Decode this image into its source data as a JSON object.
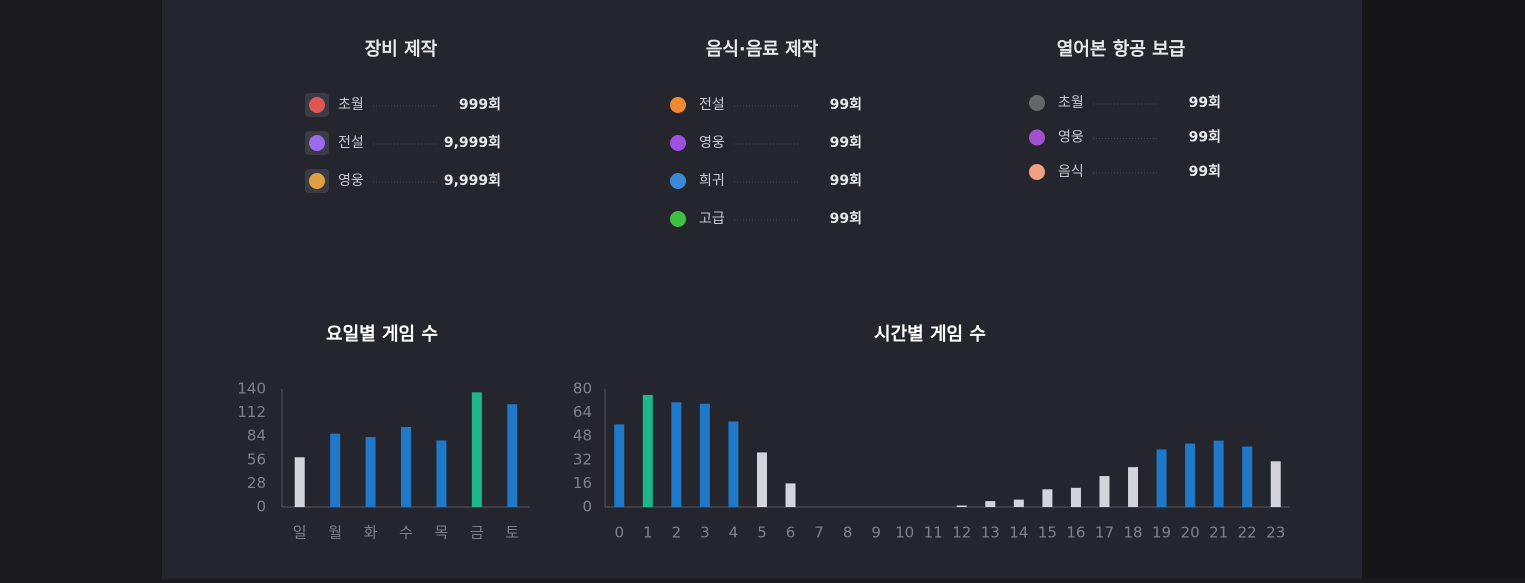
{
  "sections": [
    {
      "title": "장비 제작",
      "items": [
        {
          "label": "초월",
          "count": "999회"
        },
        {
          "label": "전설",
          "count": "9,999회"
        },
        {
          "label": "영웅",
          "count": "9,999회"
        }
      ]
    },
    {
      "title": "음식·음료 제작",
      "items": [
        {
          "label": "전설",
          "count": "99회"
        },
        {
          "label": "영웅",
          "count": "99회"
        },
        {
          "label": "희귀",
          "count": "99회"
        },
        {
          "label": "고급",
          "count": "99회"
        }
      ]
    },
    {
      "title": "열어본 항공 보급",
      "items": [
        {
          "label": "초월",
          "count": "99회"
        },
        {
          "label": "영웅",
          "count": "99회"
        },
        {
          "label": "음식",
          "count": "99회"
        }
      ]
    }
  ],
  "chart_data": [
    {
      "type": "bar",
      "title": "요일별 게임 수",
      "categories": [
        "일",
        "월",
        "화",
        "수",
        "목",
        "금",
        "토"
      ],
      "values": [
        59,
        87,
        83,
        95,
        79,
        136,
        122
      ],
      "colors": [
        "#d4d4da",
        "#1f78c8",
        "#1f78c8",
        "#1f78c8",
        "#1f78c8",
        "#1db88a",
        "#1f78c8"
      ],
      "ylim": [
        0,
        140
      ],
      "yticks": [
        0,
        28,
        56,
        84,
        112,
        140
      ],
      "grid": false
    },
    {
      "type": "bar",
      "title": "시간별 게임 수",
      "categories": [
        "0",
        "1",
        "2",
        "3",
        "4",
        "5",
        "6",
        "7",
        "8",
        "9",
        "10",
        "11",
        "12",
        "13",
        "14",
        "15",
        "16",
        "17",
        "18",
        "19",
        "20",
        "21",
        "22",
        "23"
      ],
      "values": [
        56,
        76,
        71,
        70,
        58,
        37,
        16,
        0,
        0,
        0,
        0,
        0,
        1,
        4,
        5,
        12,
        13,
        21,
        27,
        39,
        43,
        45,
        41,
        31
      ],
      "colors": [
        "#1f78c8",
        "#1db88a",
        "#1f78c8",
        "#1f78c8",
        "#1f78c8",
        "#d4d4da",
        "#d4d4da",
        "#d4d4da",
        "#d4d4da",
        "#d4d4da",
        "#d4d4da",
        "#d4d4da",
        "#d4d4da",
        "#d4d4da",
        "#d4d4da",
        "#d4d4da",
        "#d4d4da",
        "#d4d4da",
        "#d4d4da",
        "#1f78c8",
        "#1f78c8",
        "#1f78c8",
        "#1f78c8",
        "#d4d4da"
      ],
      "ylim": [
        0,
        80
      ],
      "yticks": [
        0,
        16,
        32,
        48,
        64,
        80
      ],
      "grid": false
    }
  ]
}
